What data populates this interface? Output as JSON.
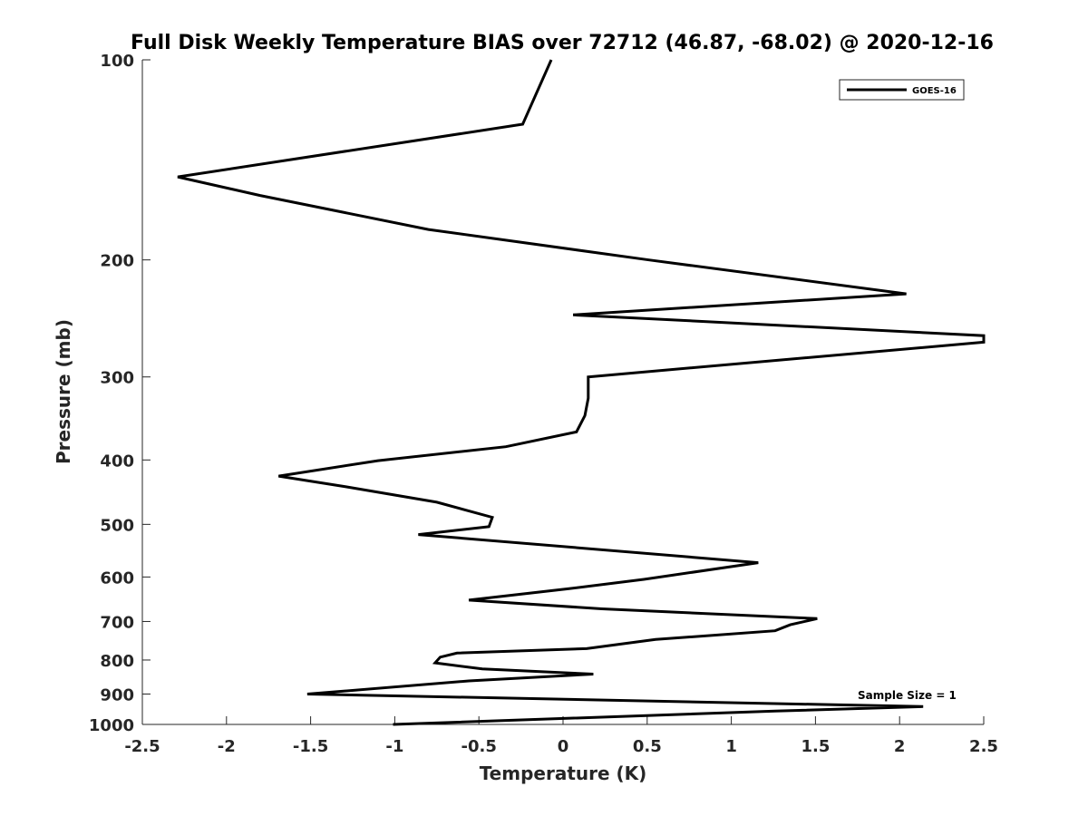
{
  "chart_data": {
    "type": "line",
    "title": "Full Disk Weekly Temperature BIAS over 72712 (46.87, -68.02) @ 2020-12-16",
    "xlabel": "Temperature (K)",
    "ylabel": "Pressure (mb)",
    "xlim": [
      -2.5,
      2.5
    ],
    "ylim": [
      100,
      1000
    ],
    "y_scale": "log",
    "y_reversed": true,
    "x_ticks": [
      "-2.5",
      "-2",
      "-1.5",
      "-1",
      "-0.5",
      "0",
      "0.5",
      "1",
      "1.5",
      "2",
      "2.5"
    ],
    "y_ticks": [
      "100",
      "200",
      "300",
      "400",
      "500",
      "600",
      "700",
      "800",
      "900",
      "1000"
    ],
    "grid": false,
    "legend_position": "top-right",
    "annotation": "Sample Size = 1",
    "line_color": "#000000",
    "series": [
      {
        "name": "GOES-16",
        "points": [
          {
            "t": -0.07,
            "p": 100
          },
          {
            "t": -0.24,
            "p": 125
          },
          {
            "t": -2.29,
            "p": 150
          },
          {
            "t": -1.8,
            "p": 160
          },
          {
            "t": -0.8,
            "p": 180
          },
          {
            "t": 0.51,
            "p": 200
          },
          {
            "t": 2.04,
            "p": 225
          },
          {
            "t": 0.06,
            "p": 242
          },
          {
            "t": 2.5,
            "p": 260
          },
          {
            "t": 2.5,
            "p": 266
          },
          {
            "t": 0.15,
            "p": 300
          },
          {
            "t": 0.15,
            "p": 323
          },
          {
            "t": 0.13,
            "p": 343
          },
          {
            "t": 0.08,
            "p": 363
          },
          {
            "t": -0.34,
            "p": 382
          },
          {
            "t": -1.1,
            "p": 401
          },
          {
            "t": -1.69,
            "p": 423
          },
          {
            "t": -1.29,
            "p": 439
          },
          {
            "t": -0.75,
            "p": 463
          },
          {
            "t": -0.42,
            "p": 488
          },
          {
            "t": -0.44,
            "p": 504
          },
          {
            "t": -0.86,
            "p": 518
          },
          {
            "t": 1.16,
            "p": 571
          },
          {
            "t": 0.48,
            "p": 605
          },
          {
            "t": 0.03,
            "p": 625
          },
          {
            "t": -0.56,
            "p": 650
          },
          {
            "t": 0.23,
            "p": 670
          },
          {
            "t": 1.51,
            "p": 693
          },
          {
            "t": 1.35,
            "p": 708
          },
          {
            "t": 1.26,
            "p": 723
          },
          {
            "t": 0.55,
            "p": 745
          },
          {
            "t": 0.14,
            "p": 769
          },
          {
            "t": -0.63,
            "p": 781
          },
          {
            "t": -0.73,
            "p": 792
          },
          {
            "t": -0.76,
            "p": 808
          },
          {
            "t": -0.48,
            "p": 825
          },
          {
            "t": 0.18,
            "p": 840
          },
          {
            "t": -0.56,
            "p": 860
          },
          {
            "t": -1.52,
            "p": 900
          },
          {
            "t": 2.14,
            "p": 940
          },
          {
            "t": 1.26,
            "p": 955
          },
          {
            "t": -1.01,
            "p": 1000
          }
        ]
      }
    ]
  }
}
